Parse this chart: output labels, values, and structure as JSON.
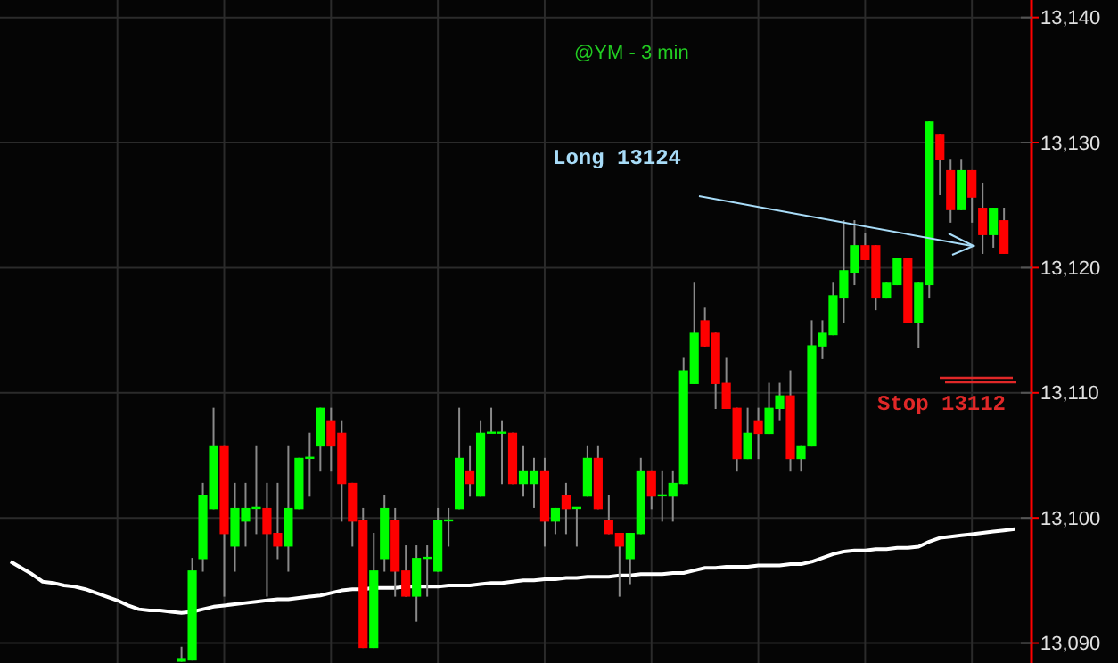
{
  "chart_data": {
    "type": "candlestick",
    "title": "@YM - 3 min",
    "categories": [
      null,
      null,
      null,
      null,
      null,
      null,
      null,
      null,
      null,
      null,
      null,
      null,
      null,
      null,
      null,
      null,
      null,
      null,
      null,
      null,
      null,
      null,
      null,
      null,
      null,
      null,
      null,
      null,
      null,
      null,
      null,
      null,
      null,
      null,
      null,
      null,
      null,
      null,
      null,
      null,
      null,
      null,
      null,
      null,
      null,
      null,
      null,
      null,
      null,
      null,
      null,
      null,
      null,
      null,
      null,
      null,
      null,
      null,
      null,
      null,
      null,
      null,
      null,
      null,
      null,
      null,
      null,
      null,
      null,
      null,
      null,
      null,
      null,
      null,
      null,
      null,
      null,
      null,
      null,
      null,
      null,
      null,
      null,
      null,
      null,
      null,
      null,
      null,
      null,
      null,
      null,
      null,
      null,
      null,
      null,
      null
    ],
    "ohlc": [
      null,
      null,
      null,
      null,
      null,
      null,
      null,
      null,
      null,
      null,
      null,
      null,
      null,
      null,
      null,
      null,
      [
        13088.5,
        13089.7,
        13088.5,
        13088.8
      ],
      [
        13088.6,
        13096.8,
        13088.6,
        13095.8
      ],
      [
        13096.7,
        13102.8,
        13095.7,
        13101.8
      ],
      [
        13100.7,
        13108.8,
        13100.7,
        13105.8
      ],
      [
        13105.8,
        13105.8,
        13093.7,
        13098.7
      ],
      [
        13097.7,
        13102.8,
        13095.7,
        13100.8
      ],
      [
        13099.7,
        13102.8,
        13097.7,
        13100.8
      ],
      [
        13100.8,
        13105.8,
        13098.7,
        13100.8
      ],
      [
        13100.8,
        13102.8,
        13093.7,
        13098.7
      ],
      [
        13098.8,
        13102.8,
        13096.7,
        13097.7
      ],
      [
        13097.7,
        13105.8,
        13095.7,
        13100.8
      ],
      [
        13100.7,
        13104.8,
        13100.7,
        13104.8
      ],
      [
        13104.8,
        13106.8,
        13101.7,
        13104.8
      ],
      [
        13105.7,
        13108.8,
        13103.7,
        13108.8
      ],
      [
        13107.8,
        13108.8,
        13103.7,
        13105.7
      ],
      [
        13106.8,
        13107.8,
        13099.7,
        13102.7
      ],
      [
        13102.8,
        13102.8,
        13097.7,
        13099.7
      ],
      [
        13099.8,
        13100.8,
        13089.6,
        13089.6
      ],
      [
        13089.6,
        13098.8,
        13089.6,
        13095.8
      ],
      [
        13096.7,
        13101.8,
        13095.7,
        13100.8
      ],
      [
        13099.8,
        13100.8,
        13093.7,
        13095.7
      ],
      [
        13095.8,
        13097.8,
        13093.7,
        13093.7
      ],
      [
        13093.7,
        13097.8,
        13091.7,
        13096.8
      ],
      [
        13096.8,
        13097.8,
        13093.7,
        13096.8
      ],
      [
        13095.7,
        13100.8,
        13095.7,
        13099.8
      ],
      [
        13099.8,
        13100.8,
        13097.7,
        13099.8
      ],
      [
        13100.7,
        13108.8,
        13100.7,
        13104.8
      ],
      [
        13103.8,
        13105.8,
        13101.7,
        13102.7
      ],
      [
        13101.7,
        13107.8,
        13101.7,
        13106.8
      ],
      [
        13106.8,
        13108.8,
        13106.8,
        13106.8
      ],
      [
        13106.8,
        13107.8,
        13102.7,
        13106.8
      ],
      [
        13106.8,
        13106.8,
        13102.7,
        13102.7
      ],
      [
        13102.7,
        13105.8,
        13101.7,
        13103.8
      ],
      [
        13102.7,
        13104.8,
        13100.8,
        13103.8
      ],
      [
        13103.8,
        13104.8,
        13097.7,
        13099.7
      ],
      [
        13099.7,
        13100.8,
        13098.7,
        13100.8
      ],
      [
        13101.8,
        13102.8,
        13098.7,
        13100.7
      ],
      [
        13100.8,
        13100.8,
        13097.7,
        13100.8
      ],
      [
        13101.7,
        13105.8,
        13101.7,
        13104.8
      ],
      [
        13104.8,
        13105.8,
        13100.7,
        13100.7
      ],
      [
        13099.8,
        13101.8,
        13098.7,
        13098.7
      ],
      [
        13098.8,
        13098.8,
        13093.7,
        13097.7
      ],
      [
        13096.7,
        13098.8,
        13094.7,
        13098.8
      ],
      [
        13098.7,
        13104.8,
        13098.7,
        13103.8
      ],
      [
        13103.8,
        13103.8,
        13100.7,
        13101.7
      ],
      [
        13101.8,
        13103.8,
        13099.7,
        13101.8
      ],
      [
        13101.7,
        13103.8,
        13099.7,
        13102.8
      ],
      [
        13102.7,
        13112.8,
        13102.7,
        13111.8
      ],
      [
        13110.7,
        13118.8,
        13110.7,
        13114.8
      ],
      [
        13115.8,
        13116.8,
        13113.7,
        13113.7
      ],
      [
        13114.8,
        13114.8,
        13108.7,
        13110.7
      ],
      [
        13110.8,
        13112.8,
        13108.7,
        13108.7
      ],
      [
        13108.8,
        13108.8,
        13103.7,
        13104.7
      ],
      [
        13104.7,
        13108.8,
        13104.7,
        13106.8
      ],
      [
        13107.8,
        13108.8,
        13104.7,
        13106.7
      ],
      [
        13106.7,
        13110.8,
        13106.7,
        13108.8
      ],
      [
        13108.7,
        13110.8,
        13107.8,
        13109.8
      ],
      [
        13109.8,
        13111.8,
        13103.7,
        13104.7
      ],
      [
        13104.7,
        13105.8,
        13103.7,
        13105.8
      ],
      [
        13105.7,
        13115.8,
        13105.7,
        13113.8
      ],
      [
        13113.7,
        13115.8,
        13112.7,
        13114.8
      ],
      [
        13114.6,
        13118.8,
        13114.6,
        13117.8
      ],
      [
        13117.6,
        13123.8,
        13115.6,
        13119.8
      ],
      [
        13119.6,
        13123.8,
        13118.6,
        13121.8
      ],
      [
        13121.8,
        13122.8,
        13120.6,
        13120.6
      ],
      [
        13121.8,
        13121.8,
        13116.6,
        13117.6
      ],
      [
        13117.6,
        13118.8,
        13117.6,
        13118.8
      ],
      [
        13118.6,
        13120.8,
        13118.6,
        13120.8
      ],
      [
        13120.8,
        13120.8,
        13115.6,
        13115.6
      ],
      [
        13115.6,
        13118.8,
        13113.6,
        13118.8
      ],
      [
        13118.6,
        13131.7,
        13117.6,
        13131.7
      ],
      [
        13130.7,
        13130.7,
        13125.8,
        13128.6
      ],
      [
        13127.8,
        13128.7,
        13123.6,
        13124.6
      ],
      [
        13124.6,
        13128.7,
        13124.6,
        13127.8
      ],
      [
        13127.8,
        13127.8,
        13123.6,
        13125.6
      ],
      [
        13124.8,
        13126.8,
        13121.1,
        13122.6
      ],
      [
        13122.6,
        13124.8,
        13121.6,
        13124.8
      ],
      [
        13123.8,
        13124.8,
        13121.1,
        13121.1
      ],
      null,
      null
    ],
    "series": [
      {
        "type": "line",
        "color": "#ffffff",
        "values": [
          13096.5,
          13096.0,
          13095.5,
          13094.9,
          13094.8,
          13094.6,
          13094.5,
          13094.3,
          13094.0,
          13093.7,
          13093.4,
          13093.0,
          13092.7,
          13092.6,
          13092.6,
          13092.5,
          13092.4,
          13092.5,
          13092.7,
          13092.9,
          13093.0,
          13093.1,
          13093.2,
          13093.3,
          13093.4,
          13093.5,
          13093.5,
          13093.6,
          13093.7,
          13093.8,
          13094.0,
          13094.2,
          13094.3,
          13094.3,
          13094.4,
          13094.4,
          13094.4,
          13094.5,
          13094.5,
          13094.5,
          13094.5,
          13094.6,
          13094.6,
          13094.6,
          13094.7,
          13094.8,
          13094.8,
          13094.9,
          13095.0,
          13095.0,
          13095.1,
          13095.1,
          13095.2,
          13095.2,
          13095.3,
          13095.3,
          13095.3,
          13095.4,
          13095.4,
          13095.5,
          13095.5,
          13095.5,
          13095.6,
          13095.6,
          13095.8,
          13096.0,
          13096.0,
          13096.1,
          13096.1,
          13096.1,
          13096.2,
          13096.2,
          13096.2,
          13096.3,
          13096.3,
          13096.5,
          13096.8,
          13097.1,
          13097.3,
          13097.4,
          13097.4,
          13097.5,
          13097.5,
          13097.6,
          13097.6,
          13097.7,
          13098.1,
          13098.4,
          13098.5,
          13098.6,
          13098.7,
          13098.8,
          13098.9,
          13099.0,
          13099.1,
          null
        ]
      }
    ],
    "ylim": [
      13088.4,
      13141.4
    ],
    "yticks": [
      {
        "value": 13090,
        "label": "13,090"
      },
      {
        "value": 13100,
        "label": "13,100"
      },
      {
        "value": 13110,
        "label": "13,110"
      },
      {
        "value": 13120,
        "label": "13,120"
      },
      {
        "value": 13130,
        "label": "13,130"
      },
      {
        "value": 13140,
        "label": "13,140"
      }
    ],
    "grid": true,
    "annotations": [
      "Long 13124",
      "Stop 13112"
    ]
  }
}
